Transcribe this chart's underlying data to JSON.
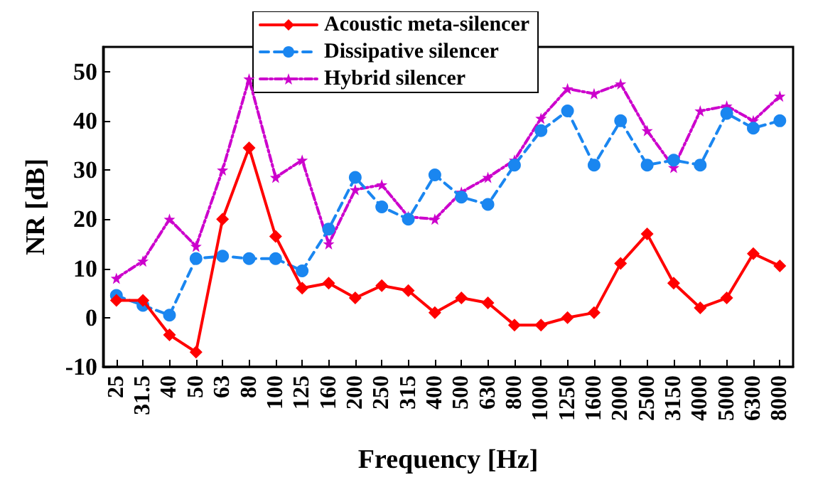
{
  "chart_data": {
    "type": "line",
    "xlabel": "Frequency [Hz]",
    "ylabel": "NR [dB]",
    "categories": [
      "25",
      "31.5",
      "40",
      "50",
      "63",
      "80",
      "100",
      "125",
      "160",
      "200",
      "250",
      "315",
      "400",
      "500",
      "630",
      "800",
      "1000",
      "1250",
      "1600",
      "2000",
      "2500",
      "3150",
      "4000",
      "5000",
      "6300",
      "8000"
    ],
    "series": [
      {
        "name": "Acoustic meta-silencer",
        "color": "#ff0000",
        "marker": "diamond",
        "line_style": "solid",
        "values": [
          3.5,
          3.5,
          -3.5,
          -7,
          20,
          34.5,
          16.5,
          6,
          7,
          4,
          6.5,
          5.5,
          1,
          4,
          3,
          -1.5,
          -1.5,
          0,
          1,
          11,
          17,
          7,
          2,
          4,
          13,
          10.5
        ]
      },
      {
        "name": "Dissipative silencer",
        "color": "#1a86f0",
        "marker": "circle",
        "line_style": "dashed",
        "values": [
          4.5,
          2.5,
          0.5,
          12,
          12.5,
          12,
          12,
          9.5,
          18,
          28.5,
          22.5,
          20,
          29,
          24.5,
          23,
          31,
          38,
          42,
          31,
          40,
          31,
          32,
          31,
          41.5,
          38.5,
          40
        ]
      },
      {
        "name": "Hybrid silencer",
        "color": "#cc00cc",
        "marker": "star",
        "line_style": "dotted",
        "values": [
          8,
          11.5,
          20,
          14.5,
          30,
          48.5,
          28.5,
          32,
          15,
          26,
          27,
          20.5,
          20,
          25.5,
          28.5,
          32,
          40.5,
          46.5,
          45.5,
          47.5,
          38,
          30.5,
          42,
          43,
          40,
          45
        ]
      }
    ],
    "ylim": [
      -10,
      55
    ],
    "yticks": [
      -10,
      0,
      10,
      20,
      30,
      40,
      50
    ],
    "grid": false,
    "legend": "top"
  }
}
